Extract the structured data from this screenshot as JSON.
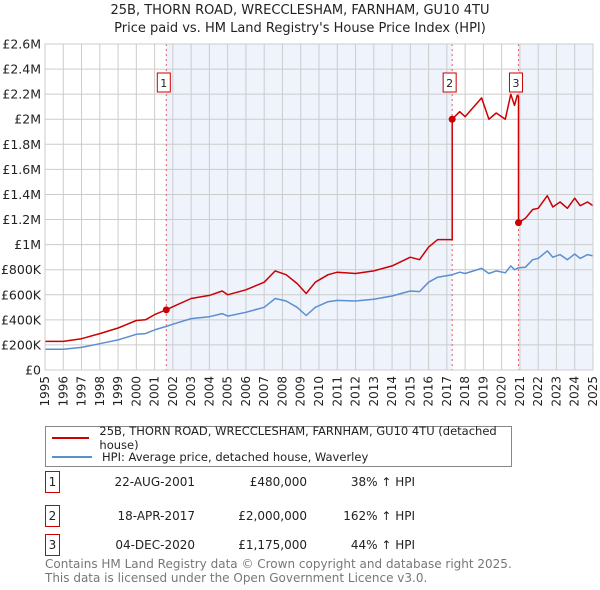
{
  "title_line1": "25B, THORN ROAD, WRECCLESHAM, FARNHAM, GU10 4TU",
  "title_line2": "Price paid vs. HM Land Registry's House Price Index (HPI)",
  "chart_data": {
    "type": "line",
    "xlim": [
      1995,
      2025
    ],
    "ylim": [
      0,
      2600000
    ],
    "x_ticks": [
      "1995",
      "1996",
      "1997",
      "1998",
      "1999",
      "2000",
      "2001",
      "2002",
      "2003",
      "2004",
      "2005",
      "2006",
      "2007",
      "2008",
      "2009",
      "2010",
      "2011",
      "2012",
      "2013",
      "2014",
      "2015",
      "2016",
      "2017",
      "2018",
      "2019",
      "2020",
      "2021",
      "2022",
      "2023",
      "2024",
      "2025"
    ],
    "y_ticks": [
      {
        "value": 0,
        "label": "£0"
      },
      {
        "value": 200000,
        "label": "£200K"
      },
      {
        "value": 400000,
        "label": "£400K"
      },
      {
        "value": 600000,
        "label": "£600K"
      },
      {
        "value": 800000,
        "label": "£800K"
      },
      {
        "value": 1000000,
        "label": "£1M"
      },
      {
        "value": 1200000,
        "label": "£1.2M"
      },
      {
        "value": 1400000,
        "label": "£1.4M"
      },
      {
        "value": 1600000,
        "label": "£1.6M"
      },
      {
        "value": 1800000,
        "label": "£1.8M"
      },
      {
        "value": 2000000,
        "label": "£2M"
      },
      {
        "value": 2200000,
        "label": "£2.2M"
      },
      {
        "value": 2400000,
        "label": "£2.4M"
      },
      {
        "value": 2600000,
        "label": "£2.6M"
      }
    ],
    "grid": true,
    "colors": {
      "property": "#cc0000",
      "hpi": "#5b8fd0",
      "shade": "#eef3fc",
      "grid": "#cccccc"
    },
    "series": [
      {
        "name": "25B, THORN ROAD, WRECCLESHAM, FARNHAM, GU10 4TU (detached house)",
        "color": "#cc0000",
        "x": [
          1995,
          1996,
          1997,
          1998,
          1999,
          2000,
          2000.5,
          2001,
          2001.64,
          2002,
          2003,
          2004,
          2004.7,
          2005,
          2006,
          2007,
          2007.6,
          2008.2,
          2008.8,
          2009.3,
          2009.8,
          2010.5,
          2011,
          2012,
          2013,
          2014,
          2015,
          2015.5,
          2016,
          2016.5,
          2017.29,
          2017.29,
          2017.7,
          2018,
          2018.9,
          2019.3,
          2019.7,
          2020.2,
          2020.5,
          2020.7,
          2020.85,
          2020.92,
          2020.92,
          2021.3,
          2021.7,
          2022,
          2022.5,
          2022.8,
          2023.2,
          2023.6,
          2024,
          2024.3,
          2024.7,
          2025
        ],
        "y": [
          228000,
          228000,
          250000,
          290000,
          335000,
          395000,
          400000,
          442000,
          480000,
          505000,
          570000,
          595000,
          630000,
          600000,
          640000,
          700000,
          790000,
          760000,
          690000,
          610000,
          700000,
          760000,
          780000,
          770000,
          790000,
          830000,
          900000,
          880000,
          980000,
          1040000,
          1040000,
          2000000,
          2060000,
          2020000,
          2170000,
          2000000,
          2050000,
          2000000,
          2200000,
          2110000,
          2190000,
          2180000,
          1175000,
          1210000,
          1280000,
          1290000,
          1390000,
          1300000,
          1340000,
          1290000,
          1370000,
          1310000,
          1340000,
          1310000
        ]
      },
      {
        "name": "HPI: Average price, detached house, Waverley",
        "color": "#5b8fd0",
        "x": [
          1995,
          1996,
          1997,
          1998,
          1999,
          2000,
          2000.5,
          2001,
          2001.64,
          2002,
          2003,
          2004,
          2004.7,
          2005,
          2006,
          2007,
          2007.6,
          2008.2,
          2008.8,
          2009.3,
          2009.8,
          2010.5,
          2011,
          2012,
          2013,
          2014,
          2015,
          2015.5,
          2016,
          2016.5,
          2017.29,
          2017.7,
          2018,
          2018.9,
          2019.3,
          2019.7,
          2020.2,
          2020.5,
          2020.7,
          2020.92,
          2021.3,
          2021.7,
          2022,
          2022.5,
          2022.8,
          2023.2,
          2023.6,
          2024,
          2024.3,
          2024.7,
          2025
        ],
        "y": [
          165000,
          165000,
          180000,
          210000,
          240000,
          285000,
          290000,
          320000,
          348000,
          365000,
          410000,
          425000,
          450000,
          430000,
          460000,
          500000,
          570000,
          550000,
          500000,
          435000,
          500000,
          545000,
          555000,
          550000,
          565000,
          590000,
          630000,
          625000,
          700000,
          740000,
          760000,
          780000,
          770000,
          810000,
          770000,
          790000,
          775000,
          830000,
          800000,
          815000,
          820000,
          880000,
          890000,
          950000,
          900000,
          920000,
          880000,
          925000,
          890000,
          920000,
          910000
        ]
      }
    ],
    "sales": [
      {
        "id": "1",
        "x": 2001.64,
        "y": 480000
      },
      {
        "id": "2",
        "x": 2017.29,
        "y": 2000000
      },
      {
        "id": "3",
        "x": 2020.92,
        "y": 1175000
      }
    ]
  },
  "legend": {
    "property_label": "25B, THORN ROAD, WRECCLESHAM, FARNHAM, GU10 4TU (detached house)",
    "hpi_label": "HPI: Average price, detached house, Waverley"
  },
  "transactions": [
    {
      "id": "1",
      "date": "22-AUG-2001",
      "price": "£480,000",
      "hpi": "38% ↑ HPI"
    },
    {
      "id": "2",
      "date": "18-APR-2017",
      "price": "£2,000,000",
      "hpi": "162% ↑ HPI"
    },
    {
      "id": "3",
      "date": "04-DEC-2020",
      "price": "£1,175,000",
      "hpi": "44% ↑ HPI"
    }
  ],
  "footer_line1": "Contains HM Land Registry data © Crown copyright and database right 2025.",
  "footer_line2": "This data is licensed under the Open Government Licence v3.0."
}
